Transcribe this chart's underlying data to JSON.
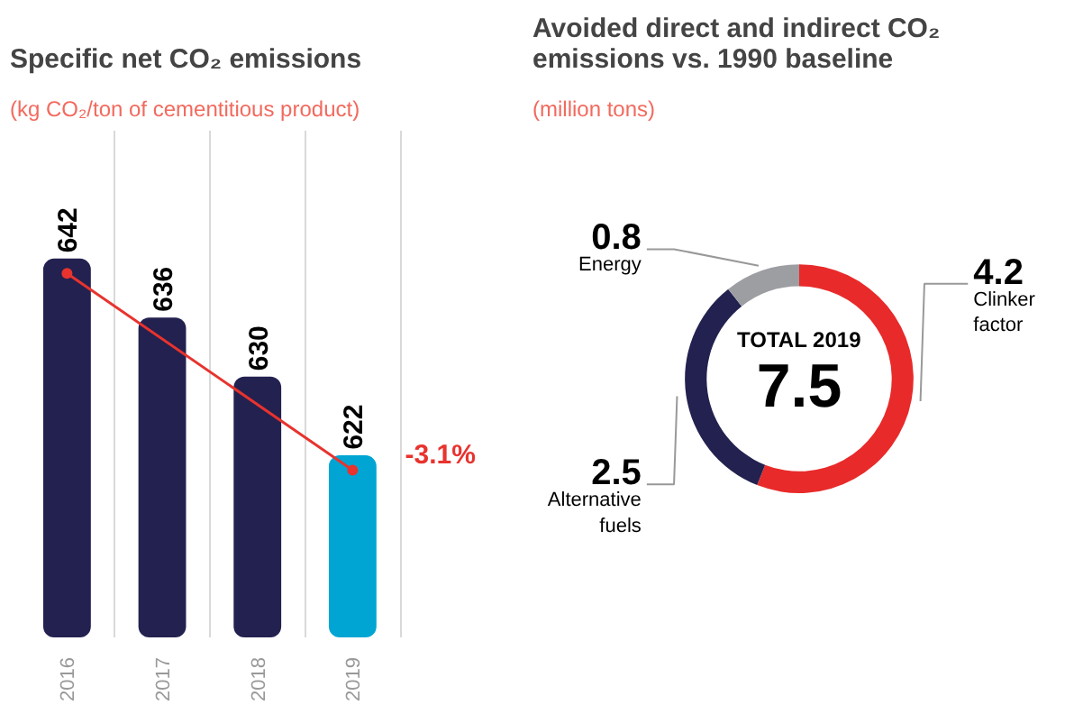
{
  "chart_data": [
    {
      "type": "bar",
      "title": "Specific net CO₂ emissions",
      "subtitle": "(kg CO₂/ton of cementitious product)",
      "categories": [
        "2016",
        "2017",
        "2018",
        "2019"
      ],
      "values": [
        642,
        636,
        630,
        622
      ],
      "colors": [
        "#23214f",
        "#23214f",
        "#23214f",
        "#00a5d3"
      ],
      "ylim": [
        603.5,
        655
      ],
      "tick_labels": "x",
      "grid": "x",
      "data_labels": true,
      "annotations": [
        {
          "text": "-3.1%",
          "x": "2019",
          "y": 622
        }
      ]
    },
    {
      "type": "donut",
      "title": "Avoided direct and indirect CO₂ emissions vs. 1990 baseline",
      "subtitle": "(million tons)",
      "categories": [
        "Clinker factor",
        "Alternative fuels",
        "Energy"
      ],
      "values": [
        4.2,
        2.5,
        0.8
      ],
      "colors": [
        "#e82a2a",
        "#23214f",
        "#9d9ea2"
      ],
      "data_labels": true,
      "annotations": [
        "TOTAL 2019",
        "7.5"
      ]
    }
  ]
}
